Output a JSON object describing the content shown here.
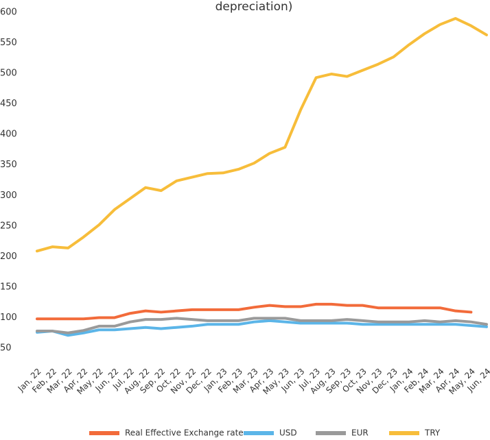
{
  "chart_data": {
    "type": "line",
    "title": "depreciation)",
    "categories": [
      "Jan, 22",
      "Feb, 22",
      "Mar, 22",
      "Apr, 22",
      "May, 22",
      "Jun, 22",
      "Jul, 22",
      "Aug, 22",
      "Sep, 22",
      "Oct, 22",
      "Nov, 22",
      "Dec, 22",
      "Jan, 23",
      "Feb, 23",
      "Mar, 23",
      "Apr, 23",
      "May, 23",
      "Jun, 23",
      "Jul, 23",
      "Aug, 23",
      "Sep, 23",
      "Oct, 23",
      "Nov, 23",
      "Dec, 23",
      "Jan, 24",
      "Feb, 24",
      "Mar, 24",
      "Apr, 24",
      "May, 24",
      "Jun, 24"
    ],
    "series": [
      {
        "name": "Real Effective Exchange rate",
        "color": "#f26b3a",
        "values": [
          98,
          98,
          98,
          98,
          100,
          100,
          107,
          111,
          109,
          111,
          113,
          113,
          113,
          113,
          117,
          120,
          118,
          118,
          122,
          122,
          120,
          120,
          116,
          116,
          116,
          116,
          116,
          111,
          109,
          null
        ]
      },
      {
        "name": "USD",
        "color": "#5bb5e8",
        "values": [
          76,
          78,
          71,
          75,
          80,
          80,
          82,
          84,
          82,
          84,
          86,
          89,
          89,
          89,
          93,
          95,
          93,
          91,
          91,
          91,
          91,
          89,
          89,
          89,
          89,
          89,
          89,
          89,
          87,
          85
        ]
      },
      {
        "name": "EUR",
        "color": "#9a9a9a",
        "values": [
          78,
          78,
          75,
          79,
          86,
          86,
          93,
          97,
          97,
          99,
          97,
          95,
          95,
          95,
          99,
          99,
          99,
          95,
          95,
          95,
          97,
          95,
          93,
          93,
          93,
          95,
          93,
          95,
          93,
          89
        ]
      },
      {
        "name": "TRY",
        "color": "#f7bd3a",
        "values": [
          209,
          216,
          214,
          232,
          252,
          277,
          295,
          313,
          308,
          324,
          330,
          336,
          337,
          343,
          353,
          369,
          379,
          440,
          493,
          499,
          495,
          505,
          515,
          527,
          547,
          565,
          580,
          590,
          578,
          563
        ]
      }
    ],
    "ylim": [
      50,
      600
    ],
    "yticks": [
      50,
      100,
      150,
      200,
      250,
      300,
      350,
      400,
      450,
      500,
      550,
      600
    ],
    "legend": "bottom"
  }
}
